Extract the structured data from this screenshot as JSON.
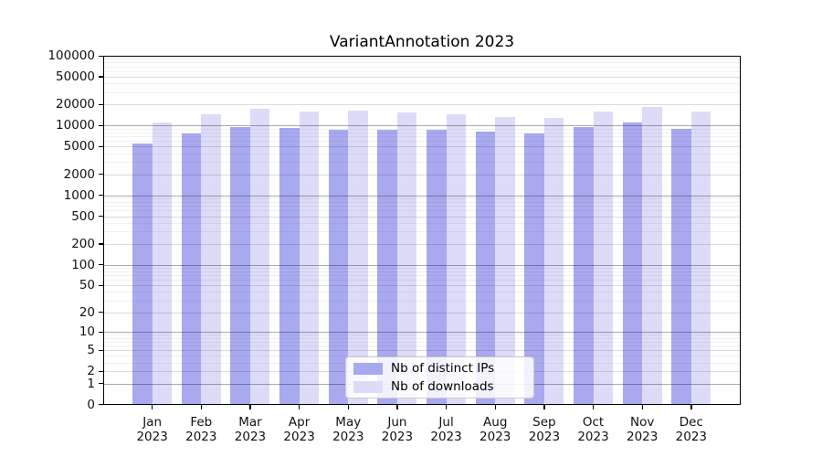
{
  "chart_data": {
    "type": "bar",
    "title": "VariantAnnotation 2023",
    "x_year": "2023",
    "categories": [
      "Jan",
      "Feb",
      "Mar",
      "Apr",
      "May",
      "Jun",
      "Jul",
      "Aug",
      "Sep",
      "Oct",
      "Nov",
      "Dec"
    ],
    "series": [
      {
        "name": "Nb of distinct IPs",
        "color": "#a9a9f0",
        "values": [
          5600,
          7700,
          9400,
          9200,
          8700,
          8600,
          8700,
          8200,
          7800,
          9600,
          10900,
          8900
        ]
      },
      {
        "name": "Nb of downloads",
        "color": "#dcdcf8",
        "values": [
          11200,
          14500,
          17200,
          15800,
          16300,
          15600,
          14500,
          13300,
          13000,
          15900,
          18400,
          15800
        ]
      }
    ],
    "y_ticks": [
      100000,
      50000,
      20000,
      10000,
      5000,
      2000,
      1000,
      500,
      200,
      100,
      50,
      20,
      10,
      5,
      2,
      1,
      0
    ],
    "y_scale": "log1p",
    "ylim": [
      0,
      100000
    ],
    "xlabel": "",
    "ylabel": "",
    "grid": true,
    "legend_position": "lower center"
  }
}
